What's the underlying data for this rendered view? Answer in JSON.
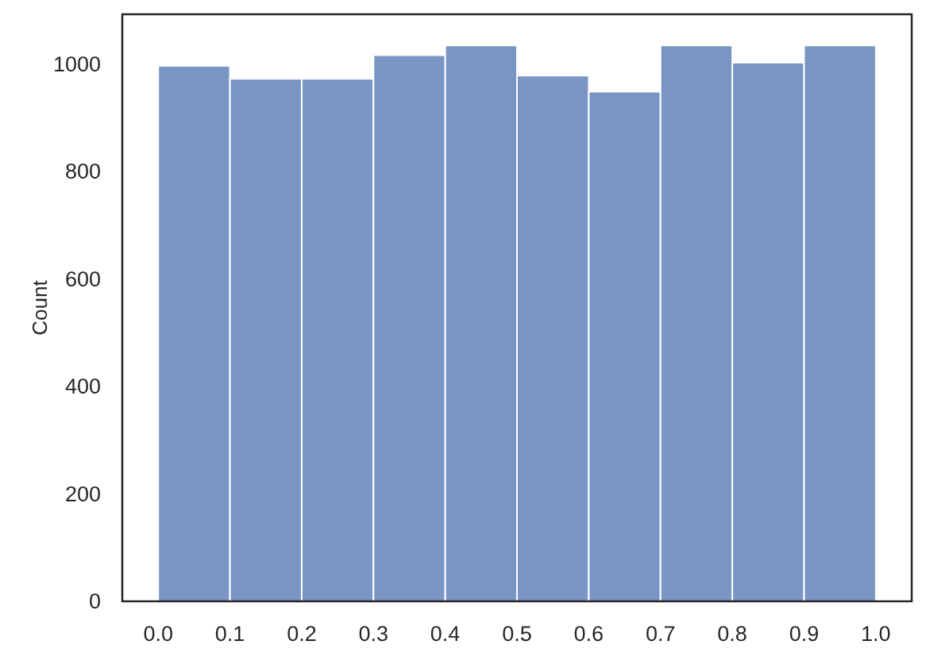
{
  "chart_data": {
    "type": "histogram",
    "ylabel": "Count",
    "bins": [
      0,
      0.1,
      0.2,
      0.3,
      0.4,
      0.5,
      0.6,
      0.7,
      0.8,
      0.9,
      1.0
    ],
    "values": [
      996,
      972,
      972,
      1016,
      1034,
      978,
      948,
      1034,
      1002,
      1034
    ],
    "color": "#7995c4",
    "xlim": [
      -0.05,
      1.05
    ],
    "xticks": [
      {
        "value": 0,
        "label": "0.0"
      },
      0.1,
      0.2,
      0.3,
      0.4,
      0.5,
      0.6,
      0.7,
      0.8,
      0.9,
      {
        "value": 1,
        "label": "1.0"
      }
    ],
    "ylim": [
      0,
      1092
    ],
    "yticks": [
      0,
      200,
      400,
      600,
      800,
      1000
    ],
    "grid": false
  }
}
